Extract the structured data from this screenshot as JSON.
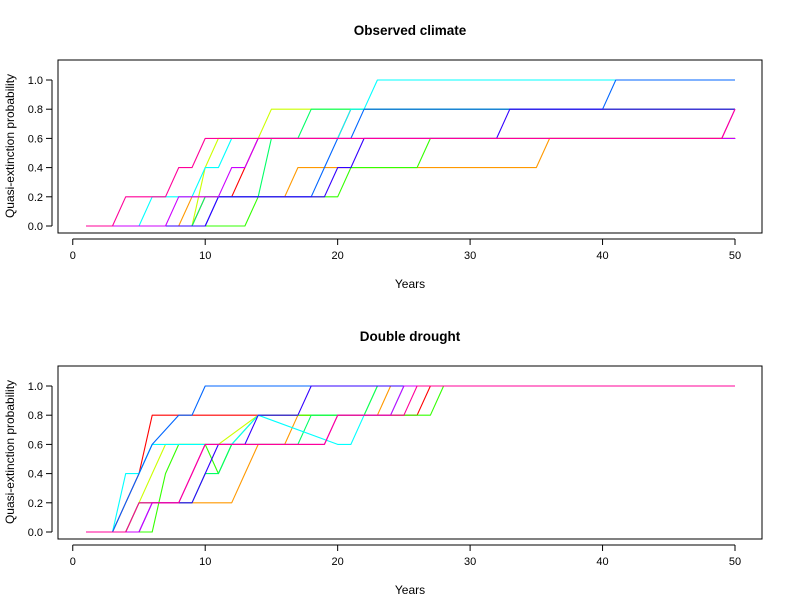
{
  "chart_data": [
    {
      "type": "line",
      "title": "Observed climate",
      "xlabel": "Years",
      "ylabel": "Quasi-extinction probability",
      "xlim": [
        1,
        50
      ],
      "ylim": [
        0,
        1
      ],
      "x_ticks": [
        0,
        10,
        20,
        30,
        40,
        50
      ],
      "y_ticks": [
        "0.0",
        "0.2",
        "0.4",
        "0.6",
        "0.8",
        "1.0"
      ],
      "grid": false,
      "series": [
        {
          "color": "#FF0000",
          "points": [
            [
              1,
              0
            ],
            [
              9,
              0
            ],
            [
              10,
              0.2
            ],
            [
              11,
              0.2
            ],
            [
              12,
              0.2
            ],
            [
              13,
              0.4
            ],
            [
              14,
              0.6
            ],
            [
              15,
              0.6
            ],
            [
              20,
              0.6
            ],
            [
              21,
              0.8
            ],
            [
              50,
              0.8
            ]
          ]
        },
        {
          "color": "#FF9900",
          "points": [
            [
              1,
              0
            ],
            [
              8,
              0
            ],
            [
              9,
              0.2
            ],
            [
              15,
              0.2
            ],
            [
              16,
              0.2
            ],
            [
              17,
              0.4
            ],
            [
              25,
              0.4
            ],
            [
              35,
              0.4
            ],
            [
              36,
              0.6
            ],
            [
              50,
              0.6
            ]
          ]
        },
        {
          "color": "#CCFF00",
          "points": [
            [
              1,
              0
            ],
            [
              9,
              0
            ],
            [
              10,
              0.4
            ],
            [
              11,
              0.6
            ],
            [
              12,
              0.6
            ],
            [
              14,
              0.6
            ],
            [
              15,
              0.8
            ],
            [
              18,
              0.8
            ],
            [
              50,
              0.8
            ]
          ]
        },
        {
          "color": "#33FF00",
          "points": [
            [
              1,
              0
            ],
            [
              10,
              0
            ],
            [
              13,
              0
            ],
            [
              14,
              0.2
            ],
            [
              20,
              0.2
            ],
            [
              21,
              0.4
            ],
            [
              24,
              0.4
            ],
            [
              26,
              0.4
            ],
            [
              27,
              0.6
            ],
            [
              50,
              0.6
            ]
          ]
        },
        {
          "color": "#00FF66",
          "points": [
            [
              1,
              0
            ],
            [
              9,
              0
            ],
            [
              10,
              0.2
            ],
            [
              14,
              0.2
            ],
            [
              15,
              0.6
            ],
            [
              17,
              0.6
            ],
            [
              18,
              0.8
            ],
            [
              21,
              0.8
            ],
            [
              50,
              0.8
            ]
          ]
        },
        {
          "color": "#00FFFF",
          "points": [
            [
              1,
              0
            ],
            [
              5,
              0
            ],
            [
              6,
              0.2
            ],
            [
              9,
              0.2
            ],
            [
              10,
              0.4
            ],
            [
              11,
              0.4
            ],
            [
              12,
              0.6
            ],
            [
              13,
              0.6
            ],
            [
              14,
              0.6
            ],
            [
              20,
              0.6
            ],
            [
              21,
              0.8
            ],
            [
              22,
              0.8
            ],
            [
              23,
              1.0
            ],
            [
              50,
              1.0
            ]
          ]
        },
        {
          "color": "#0066FF",
          "points": [
            [
              1,
              0
            ],
            [
              10,
              0
            ],
            [
              11,
              0.2
            ],
            [
              18,
              0.2
            ],
            [
              19,
              0.4
            ],
            [
              20,
              0.6
            ],
            [
              21,
              0.6
            ],
            [
              22,
              0.8
            ],
            [
              40,
              0.8
            ],
            [
              41,
              1.0
            ],
            [
              50,
              1.0
            ]
          ]
        },
        {
          "color": "#3300FF",
          "points": [
            [
              1,
              0
            ],
            [
              10,
              0
            ],
            [
              11,
              0.2
            ],
            [
              19,
              0.2
            ],
            [
              20,
              0.4
            ],
            [
              21,
              0.4
            ],
            [
              22,
              0.6
            ],
            [
              32,
              0.6
            ],
            [
              33,
              0.8
            ],
            [
              50,
              0.8
            ]
          ]
        },
        {
          "color": "#CC00FF",
          "points": [
            [
              1,
              0
            ],
            [
              7,
              0
            ],
            [
              8,
              0.2
            ],
            [
              11,
              0.2
            ],
            [
              12,
              0.4
            ],
            [
              13,
              0.4
            ],
            [
              14,
              0.6
            ],
            [
              50,
              0.6
            ],
            [
              49,
              0.6
            ],
            [
              50,
              0.8
            ]
          ]
        },
        {
          "color": "#FF0099",
          "points": [
            [
              1,
              0
            ],
            [
              3,
              0
            ],
            [
              4,
              0.2
            ],
            [
              7,
              0.2
            ],
            [
              8,
              0.4
            ],
            [
              9,
              0.4
            ],
            [
              10,
              0.6
            ],
            [
              14,
              0.6
            ],
            [
              49,
              0.6
            ],
            [
              50,
              0.8
            ]
          ]
        }
      ]
    },
    {
      "type": "line",
      "title": "Double drought",
      "xlabel": "Years",
      "ylabel": "Quasi-extinction probability",
      "xlim": [
        1,
        50
      ],
      "ylim": [
        0,
        1
      ],
      "x_ticks": [
        0,
        10,
        20,
        30,
        40,
        50
      ],
      "y_ticks": [
        "0.0",
        "0.2",
        "0.4",
        "0.6",
        "0.8",
        "1.0"
      ],
      "grid": false,
      "series": [
        {
          "color": "#FF0000",
          "points": [
            [
              1,
              0
            ],
            [
              3,
              0
            ],
            [
              4,
              0.2
            ],
            [
              5,
              0.4
            ],
            [
              6,
              0.8
            ],
            [
              20,
              0.8
            ],
            [
              21,
              0.8
            ],
            [
              26,
              0.8
            ],
            [
              27,
              1.0
            ],
            [
              50,
              1.0
            ]
          ]
        },
        {
          "color": "#FF9900",
          "points": [
            [
              1,
              0
            ],
            [
              4,
              0
            ],
            [
              5,
              0.2
            ],
            [
              12,
              0.2
            ],
            [
              13,
              0.4
            ],
            [
              14,
              0.6
            ],
            [
              16,
              0.6
            ],
            [
              17,
              0.8
            ],
            [
              23,
              0.8
            ],
            [
              24,
              1.0
            ],
            [
              50,
              1.0
            ]
          ]
        },
        {
          "color": "#CCFF00",
          "points": [
            [
              1,
              0
            ],
            [
              4,
              0
            ],
            [
              5,
              0.2
            ],
            [
              6,
              0.4
            ],
            [
              7,
              0.6
            ],
            [
              10,
              0.6
            ],
            [
              11,
              0.6
            ],
            [
              14,
              0.8
            ],
            [
              20,
              0.8
            ],
            [
              22,
              0.8
            ],
            [
              23,
              1.0
            ],
            [
              50,
              1.0
            ]
          ]
        },
        {
          "color": "#33FF00",
          "points": [
            [
              1,
              0
            ],
            [
              5,
              0
            ],
            [
              6,
              0
            ],
            [
              7,
              0.4
            ],
            [
              8,
              0.6
            ],
            [
              10,
              0.6
            ],
            [
              11,
              0.4
            ],
            [
              12,
              0.6
            ],
            [
              14,
              0.8
            ],
            [
              27,
              0.8
            ],
            [
              28,
              1.0
            ],
            [
              50,
              1.0
            ]
          ]
        },
        {
          "color": "#00FF66",
          "points": [
            [
              1,
              0
            ],
            [
              4,
              0
            ],
            [
              5,
              0.2
            ],
            [
              9,
              0.2
            ],
            [
              10,
              0.4
            ],
            [
              11,
              0.4
            ],
            [
              12,
              0.6
            ],
            [
              17,
              0.6
            ],
            [
              18,
              0.8
            ],
            [
              22,
              0.8
            ],
            [
              23,
              1.0
            ],
            [
              50,
              1.0
            ]
          ]
        },
        {
          "color": "#00FFFF",
          "points": [
            [
              1,
              0
            ],
            [
              3,
              0
            ],
            [
              4,
              0.4
            ],
            [
              5,
              0.4
            ],
            [
              6,
              0.6
            ],
            [
              9,
              0.6
            ],
            [
              10,
              0.6
            ],
            [
              11,
              0.6
            ],
            [
              12,
              0.6
            ],
            [
              14,
              0.8
            ],
            [
              20,
              0.6
            ],
            [
              21,
              0.6
            ],
            [
              22,
              0.8
            ],
            [
              24,
              0.8
            ],
            [
              25,
              1.0
            ],
            [
              50,
              1.0
            ]
          ]
        },
        {
          "color": "#0066FF",
          "points": [
            [
              1,
              0
            ],
            [
              3,
              0
            ],
            [
              4,
              0.2
            ],
            [
              5,
              0.4
            ],
            [
              6,
              0.6
            ],
            [
              8,
              0.8
            ],
            [
              9,
              0.8
            ],
            [
              10,
              1.0
            ],
            [
              16,
              1.0
            ],
            [
              17,
              1.0
            ],
            [
              50,
              1.0
            ]
          ]
        },
        {
          "color": "#3300FF",
          "points": [
            [
              1,
              0
            ],
            [
              4,
              0
            ],
            [
              5,
              0
            ],
            [
              6,
              0.2
            ],
            [
              9,
              0.2
            ],
            [
              10,
              0.4
            ],
            [
              11,
              0.6
            ],
            [
              13,
              0.6
            ],
            [
              14,
              0.8
            ],
            [
              17,
              0.8
            ],
            [
              18,
              1.0
            ],
            [
              50,
              1.0
            ]
          ]
        },
        {
          "color": "#CC00FF",
          "points": [
            [
              1,
              0
            ],
            [
              5,
              0
            ],
            [
              6,
              0.2
            ],
            [
              8,
              0.2
            ],
            [
              9,
              0.4
            ],
            [
              10,
              0.6
            ],
            [
              19,
              0.6
            ],
            [
              20,
              0.8
            ],
            [
              24,
              0.8
            ],
            [
              25,
              1.0
            ],
            [
              50,
              1.0
            ]
          ]
        },
        {
          "color": "#FF0099",
          "points": [
            [
              1,
              0
            ],
            [
              4,
              0
            ],
            [
              5,
              0.2
            ],
            [
              8,
              0.2
            ],
            [
              9,
              0.4
            ],
            [
              10,
              0.6
            ],
            [
              18,
              0.6
            ],
            [
              19,
              0.6
            ],
            [
              20,
              0.8
            ],
            [
              25,
              0.8
            ],
            [
              26,
              1.0
            ],
            [
              50,
              1.0
            ]
          ]
        }
      ]
    }
  ]
}
